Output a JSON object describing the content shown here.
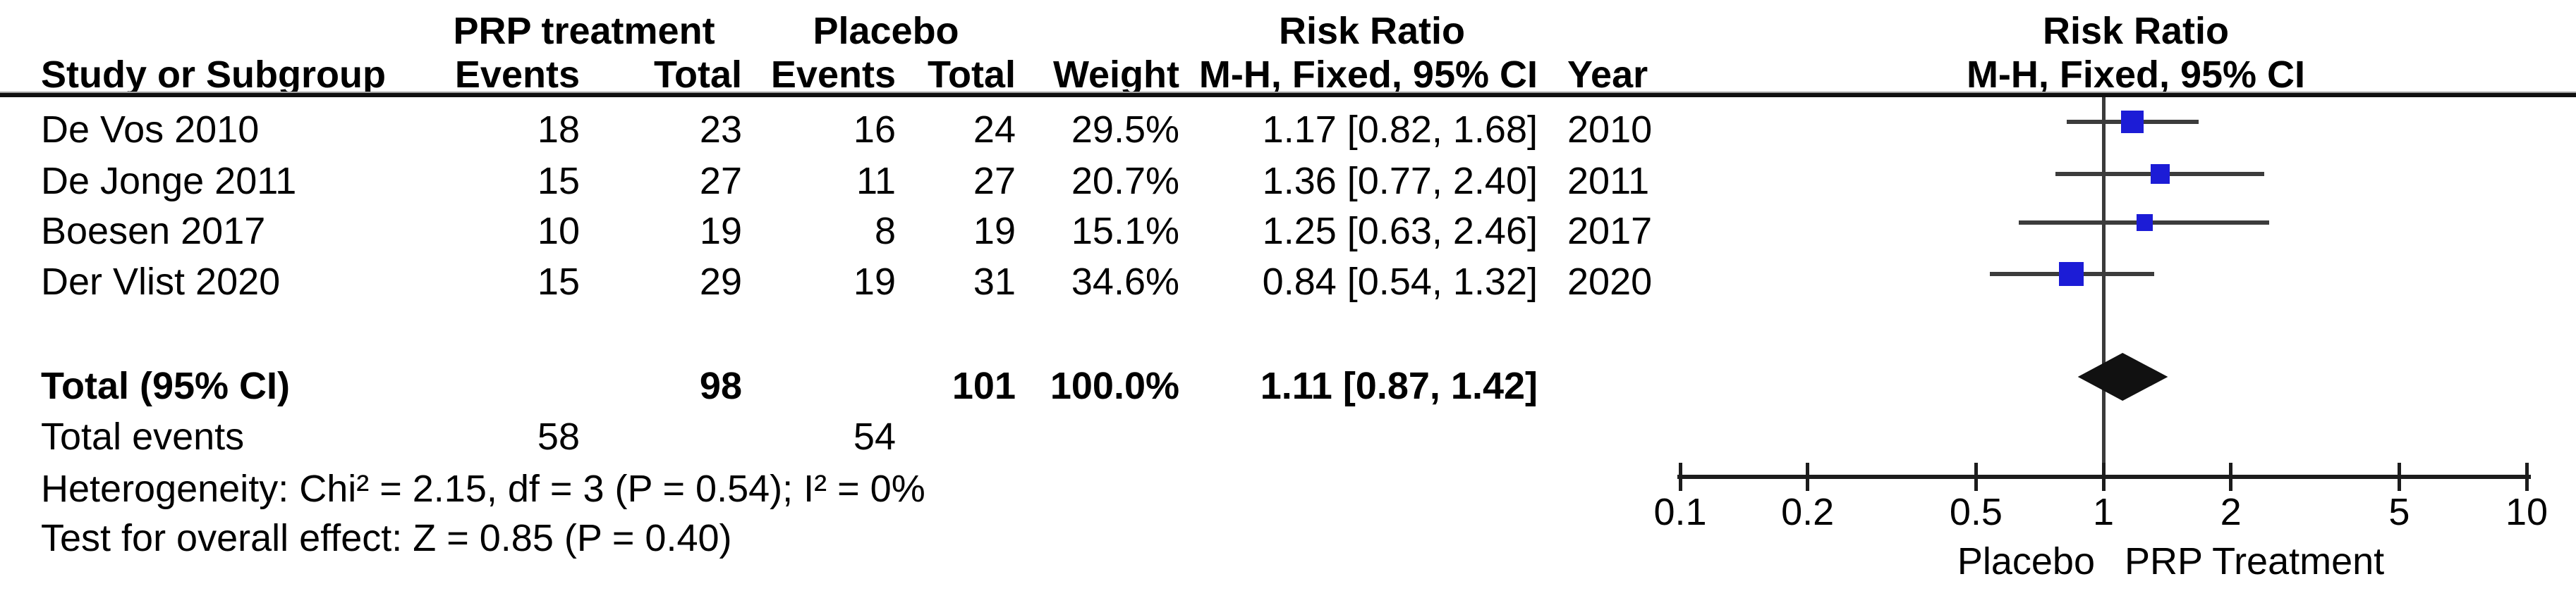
{
  "colors": {
    "marker_blue": "#1c1cd6",
    "ci_line": "#3c3c3c",
    "diamond_black": "#111111",
    "axis_black": "#1c1c1c",
    "vline_gray": "#3a3a3a"
  },
  "table": {
    "group_headers": {
      "prp": "PRP treatment",
      "placebo": "Placebo",
      "risk_ratio_left": "Risk Ratio",
      "risk_ratio_right": "Risk Ratio"
    },
    "col_headers": {
      "study": "Study or Subgroup",
      "events1": "Events",
      "total1": "Total",
      "events2": "Events",
      "total2": "Total",
      "weight": "Weight",
      "ci": "M-H, Fixed, 95% CI",
      "year": "Year",
      "ci_right": "M-H, Fixed, 95% CI"
    },
    "rows": [
      {
        "study": "De Vos 2010",
        "events1": "18",
        "total1": "23",
        "events2": "16",
        "total2": "24",
        "weight": "29.5%",
        "ci": "1.17 [0.82, 1.68]",
        "year": "2010"
      },
      {
        "study": "De Jonge 2011",
        "events1": "15",
        "total1": "27",
        "events2": "11",
        "total2": "27",
        "weight": "20.7%",
        "ci": "1.36 [0.77, 2.40]",
        "year": "2011"
      },
      {
        "study": "Boesen 2017",
        "events1": "10",
        "total1": "19",
        "events2": "8",
        "total2": "19",
        "weight": "15.1%",
        "ci": "1.25 [0.63, 2.46]",
        "year": "2017"
      },
      {
        "study": "Der Vlist 2020",
        "events1": "15",
        "total1": "29",
        "events2": "19",
        "total2": "31",
        "weight": "34.6%",
        "ci": "0.84 [0.54, 1.32]",
        "year": "2020"
      }
    ],
    "total_row": {
      "label": "Total (95% CI)",
      "total1": "98",
      "total2": "101",
      "weight": "100.0%",
      "ci": "1.11 [0.87, 1.42]"
    },
    "total_events": {
      "label": "Total events",
      "events1": "58",
      "events2": "54"
    },
    "heterogeneity": "Heterogeneity: Chi² = 2.15, df = 3 (P = 0.54); I² = 0%",
    "overall_effect": "Test for overall effect: Z = 0.85 (P = 0.40)"
  },
  "plot_labels": {
    "left": "Placebo",
    "right": "PRP Treatment"
  },
  "chart_data": {
    "type": "scatter",
    "subtype": "forest-plot",
    "effect_measure": "Risk Ratio, M-H, Fixed, 95% CI",
    "x_scale": "log",
    "xlim": [
      0.1,
      10
    ],
    "x_ticks": [
      "0.1",
      "0.2",
      "0.5",
      "1",
      "2",
      "5",
      "10"
    ],
    "x_axis_left_label": "Placebo",
    "x_axis_right_label": "PRP Treatment",
    "studies": [
      {
        "name": "De Vos 2010",
        "year": 2010,
        "prp_events": 18,
        "prp_total": 23,
        "placebo_events": 16,
        "placebo_total": 24,
        "weight_pct": 29.5,
        "rr": 1.17,
        "ci_low": 0.82,
        "ci_high": 1.68
      },
      {
        "name": "De Jonge 2011",
        "year": 2011,
        "prp_events": 15,
        "prp_total": 27,
        "placebo_events": 11,
        "placebo_total": 27,
        "weight_pct": 20.7,
        "rr": 1.36,
        "ci_low": 0.77,
        "ci_high": 2.4
      },
      {
        "name": "Boesen 2017",
        "year": 2017,
        "prp_events": 10,
        "prp_total": 19,
        "placebo_events": 8,
        "placebo_total": 19,
        "weight_pct": 15.1,
        "rr": 1.25,
        "ci_low": 0.63,
        "ci_high": 2.46
      },
      {
        "name": "Der Vlist 2020",
        "year": 2020,
        "prp_events": 15,
        "prp_total": 29,
        "placebo_events": 19,
        "placebo_total": 31,
        "weight_pct": 34.6,
        "rr": 0.84,
        "ci_low": 0.54,
        "ci_high": 1.32
      }
    ],
    "total": {
      "label": "Total (95% CI)",
      "prp_total": 98,
      "placebo_total": 101,
      "weight_pct": 100.0,
      "rr": 1.11,
      "ci_low": 0.87,
      "ci_high": 1.42,
      "total_events_prp": 58,
      "total_events_placebo": 54
    },
    "heterogeneity": "Chi² = 2.15, df = 3 (P = 0.54); I² = 0%",
    "overall_effect_test": "Z = 0.85 (P = 0.40)"
  }
}
